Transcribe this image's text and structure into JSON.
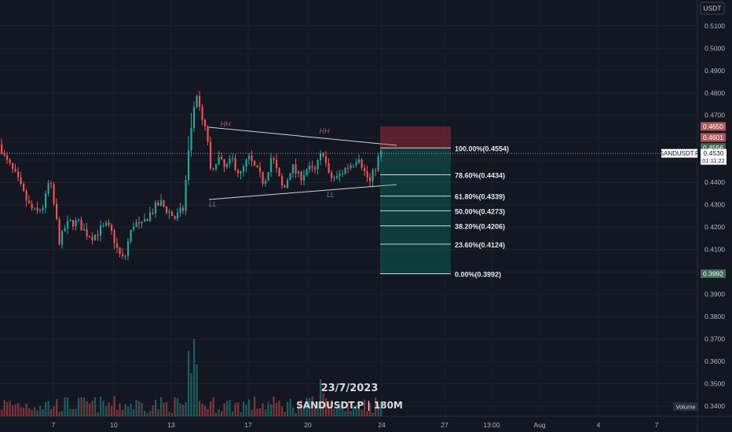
{
  "chart_data": {
    "type": "candlestick",
    "symbol": "SANDUSDT.P",
    "timeframe": "180M",
    "watermark_date": "23/7/2023",
    "watermark_symbol": "SANDUSDT.P | 180M",
    "currency_label": "USDT",
    "volume_label": "Volume",
    "ylim": [
      0.3355,
      0.5215
    ],
    "y_ticks": [
      "0.5100",
      "0.5000",
      "0.4900",
      "0.4800",
      "0.4700",
      "0.4600",
      "0.4500",
      "0.4400",
      "0.4300",
      "0.4200",
      "0.4100",
      "0.4000",
      "0.3900",
      "0.3800",
      "0.3700",
      "0.3600",
      "0.3500",
      "0.3400"
    ],
    "x_ticks": [
      "7",
      "10",
      "13",
      "17",
      "20",
      "24",
      "27",
      "13:00",
      "Aug",
      "4",
      "7"
    ],
    "last_price": {
      "label": "SANDUSDT.P",
      "value": "0.4530",
      "countdown": "01:11:22"
    },
    "position_labels": [
      {
        "value": "0.4650",
        "color": "#b2585d"
      },
      {
        "value": "0.4601",
        "color": "#b2585d"
      },
      {
        "value": "0.4556",
        "color": "#3e6b52"
      }
    ],
    "low_label": {
      "value": "0.3992",
      "color": "#3e6b52"
    },
    "fib_levels": [
      {
        "label": "100.00%(0.4554)",
        "value": 0.4554
      },
      {
        "label": "78.60%(0.4434)",
        "value": 0.4434
      },
      {
        "label": "61.80%(0.4339)",
        "value": 0.4339
      },
      {
        "label": "50.00%(0.4273)",
        "value": 0.4273
      },
      {
        "label": "38.20%(0.4206)",
        "value": 0.4206
      },
      {
        "label": "23.60%(0.4124)",
        "value": 0.4124
      },
      {
        "label": "0.00%(0.3992)",
        "value": 0.3992
      }
    ],
    "position": {
      "entry": 0.4556,
      "stop": 0.465,
      "target": 0.3992
    },
    "pattern_labels": [
      "HH",
      "HH",
      "LL",
      "LL"
    ],
    "colors": {
      "up": "#089981",
      "down": "#f23645",
      "up_muted": "#26a69a",
      "down_muted": "#ef5350",
      "grid": "#1e222d",
      "text": "#b2b5be",
      "bg": "#131722"
    }
  }
}
